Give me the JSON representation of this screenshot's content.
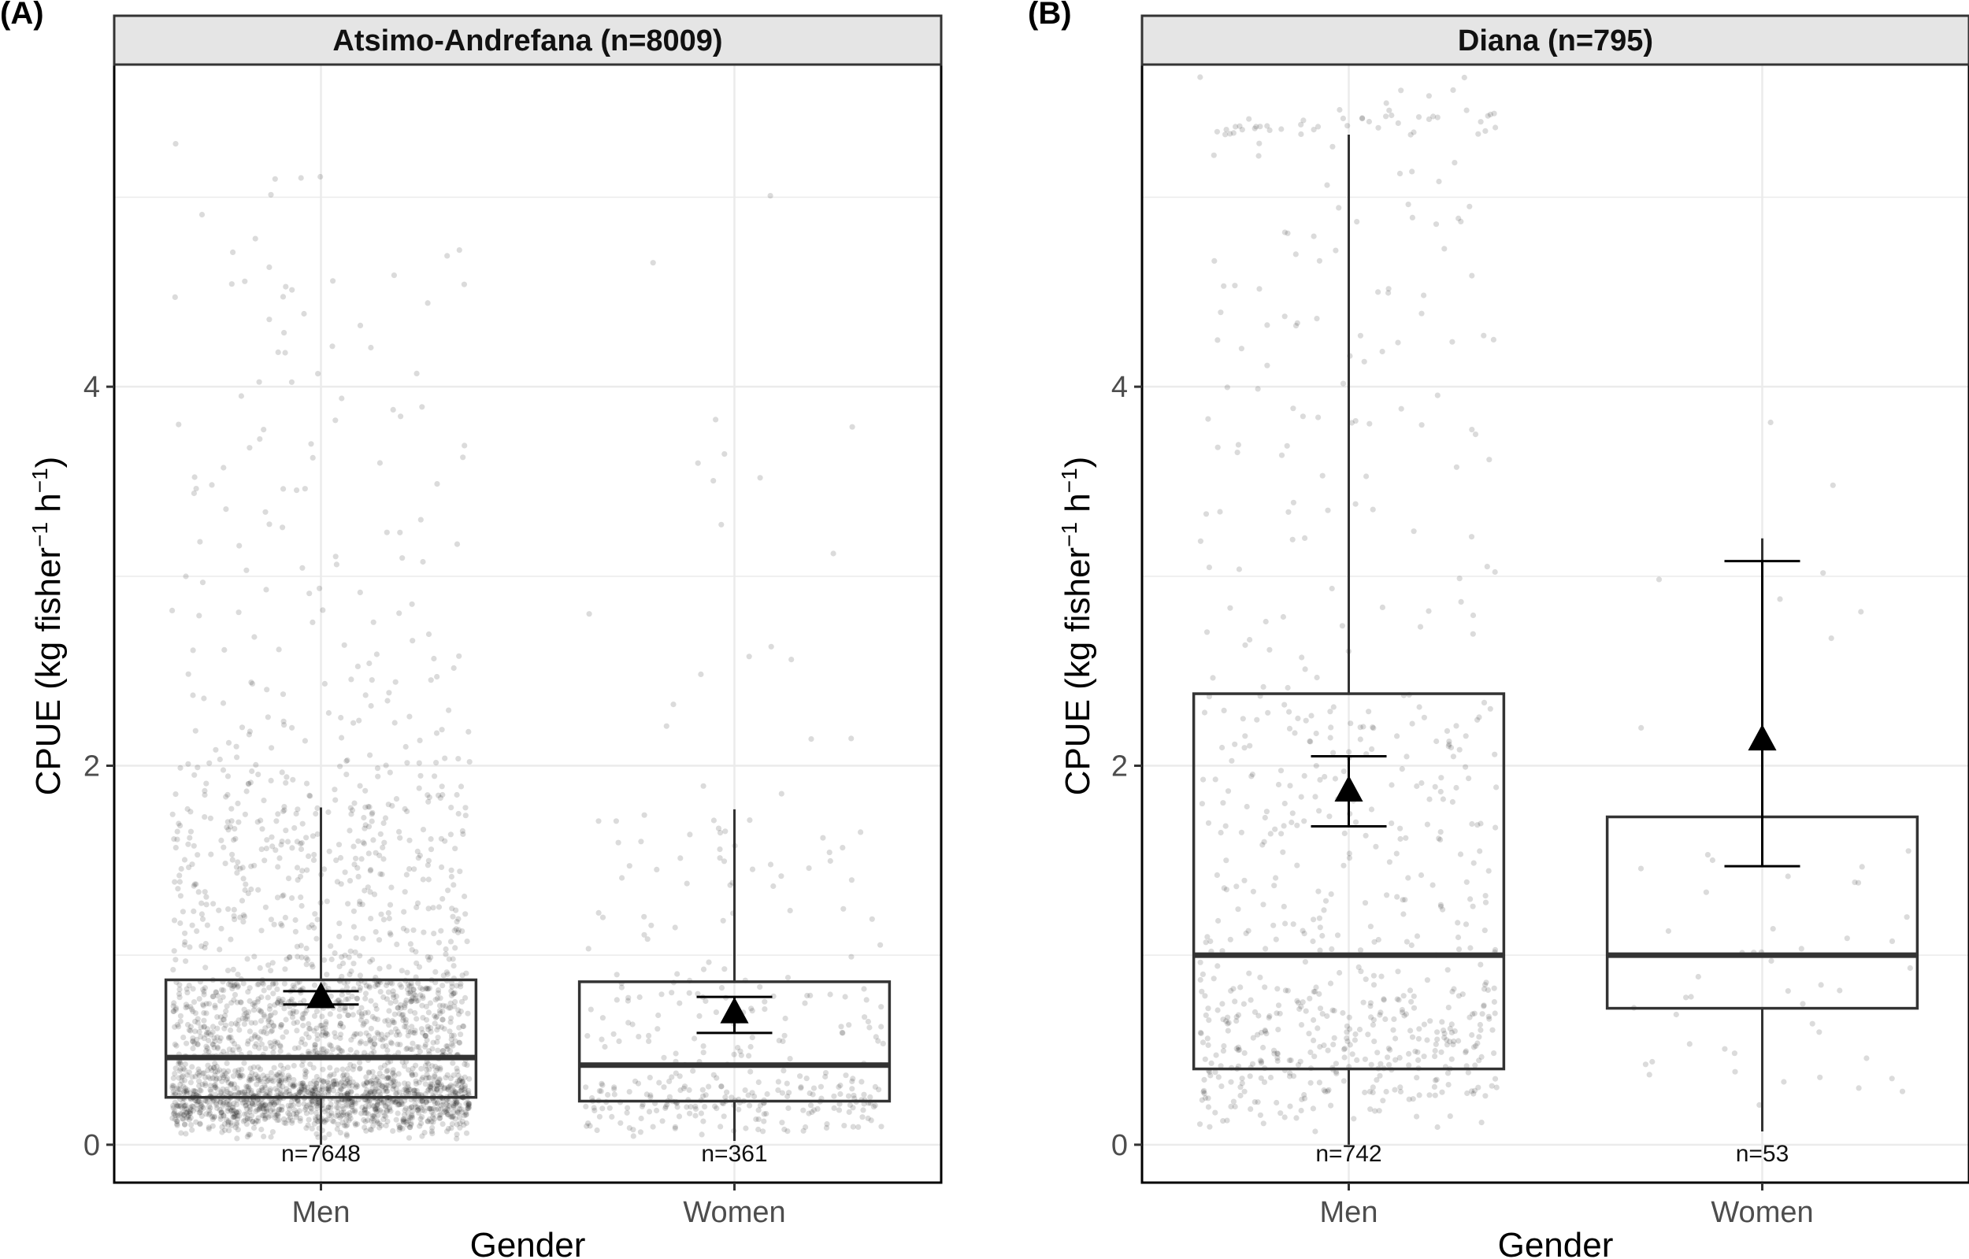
{
  "chart_data": [
    {
      "type": "box",
      "panel_tag": "(A)",
      "title": "Atsimo-Andrefana (n=8009)",
      "xlabel": "Gender",
      "ylabel": "CPUE (kg fisher",
      "ylabel_exp1": "−1",
      "ylabel_mid": " h",
      "ylabel_exp2": "−1",
      "ylabel_end": ")",
      "ylim": [
        -0.2,
        5.7
      ],
      "yticks": [
        0,
        2,
        4
      ],
      "categories": [
        "Men",
        "Women"
      ],
      "boxes": [
        {
          "category": "Men",
          "n_label": "n=7648",
          "whisker_low": 0.0,
          "q1": 0.25,
          "median": 0.46,
          "q3": 0.87,
          "whisker_high": 1.78,
          "mean": 0.78,
          "mean_ci": [
            0.74,
            0.81
          ],
          "points": 2600,
          "jitter": 0.36
        },
        {
          "category": "Women",
          "n_label": "n=361",
          "whisker_low": 0.02,
          "q1": 0.23,
          "median": 0.42,
          "q3": 0.86,
          "whisker_high": 1.77,
          "mean": 0.7,
          "mean_ci": [
            0.59,
            0.78
          ],
          "points": 361,
          "jitter": 0.36
        }
      ],
      "grid": true,
      "colors": {
        "points": "#000000",
        "box": "#333333",
        "mean": "#000000",
        "grid": "#ebebeb",
        "strip": "#e5e5e5"
      }
    },
    {
      "type": "box",
      "panel_tag": "(B)",
      "title": "Diana (n=795)",
      "xlabel": "Gender",
      "ylabel": "CPUE (kg fisher",
      "ylabel_exp1": "−1",
      "ylabel_mid": " h",
      "ylabel_exp2": "−1",
      "ylabel_end": ")",
      "ylim": [
        -0.2,
        5.7
      ],
      "yticks": [
        0,
        2,
        4
      ],
      "categories": [
        "Men",
        "Women"
      ],
      "boxes": [
        {
          "category": "Men",
          "n_label": "n=742",
          "whisker_low": 0.0,
          "q1": 0.4,
          "median": 1.0,
          "q3": 2.38,
          "whisker_high": 5.33,
          "mean": 1.87,
          "mean_ci": [
            1.68,
            2.05
          ],
          "points": 742,
          "jitter": 0.36
        },
        {
          "category": "Women",
          "n_label": "n=53",
          "whisker_low": 0.07,
          "q1": 0.72,
          "median": 1.0,
          "q3": 1.73,
          "whisker_high": 3.2,
          "mean": 2.14,
          "mean_ci": [
            1.47,
            3.08
          ],
          "points": 53,
          "jitter": 0.36
        }
      ],
      "grid": true,
      "colors": {
        "points": "#000000",
        "box": "#333333",
        "mean": "#000000",
        "grid": "#ebebeb",
        "strip": "#e5e5e5"
      }
    }
  ]
}
